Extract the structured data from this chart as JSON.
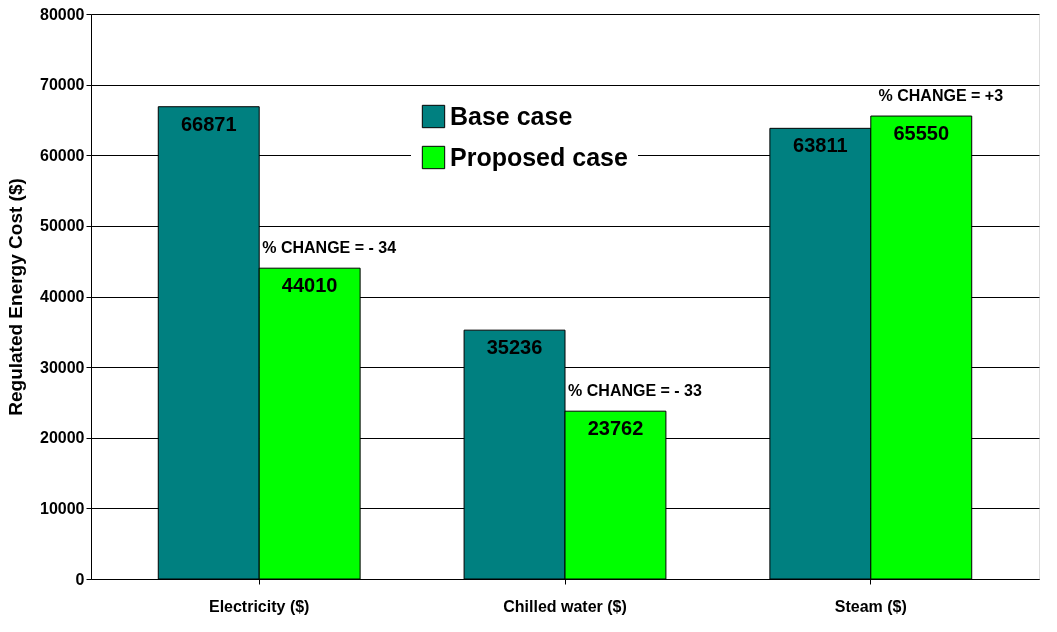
{
  "chart_data": {
    "type": "bar",
    "ylabel": "Regulated Energy Cost ($)",
    "categories": [
      "Electricity ($)",
      "Chilled water ($)",
      "Steam ($)"
    ],
    "series": [
      {
        "name": "Base case",
        "color": "#008080",
        "values": [
          66871,
          35236,
          63811
        ]
      },
      {
        "name": "Proposed case",
        "color": "#00ff00",
        "values": [
          44010,
          23762,
          65550
        ]
      }
    ],
    "ylim": [
      0,
      80000
    ],
    "yticks": [
      0,
      10000,
      20000,
      30000,
      40000,
      50000,
      60000,
      70000,
      80000
    ],
    "grid": "y",
    "legend": "top",
    "data_labels": true,
    "annotations": [
      {
        "text": "% CHANGE = - 34",
        "x": "Electricity ($)",
        "y": 44010
      },
      {
        "text": "% CHANGE = - 33",
        "x": "Chilled water ($)",
        "y": 23762
      },
      {
        "text": "% CHANGE = +3",
        "x": "Steam ($)",
        "y": 65550
      }
    ]
  }
}
